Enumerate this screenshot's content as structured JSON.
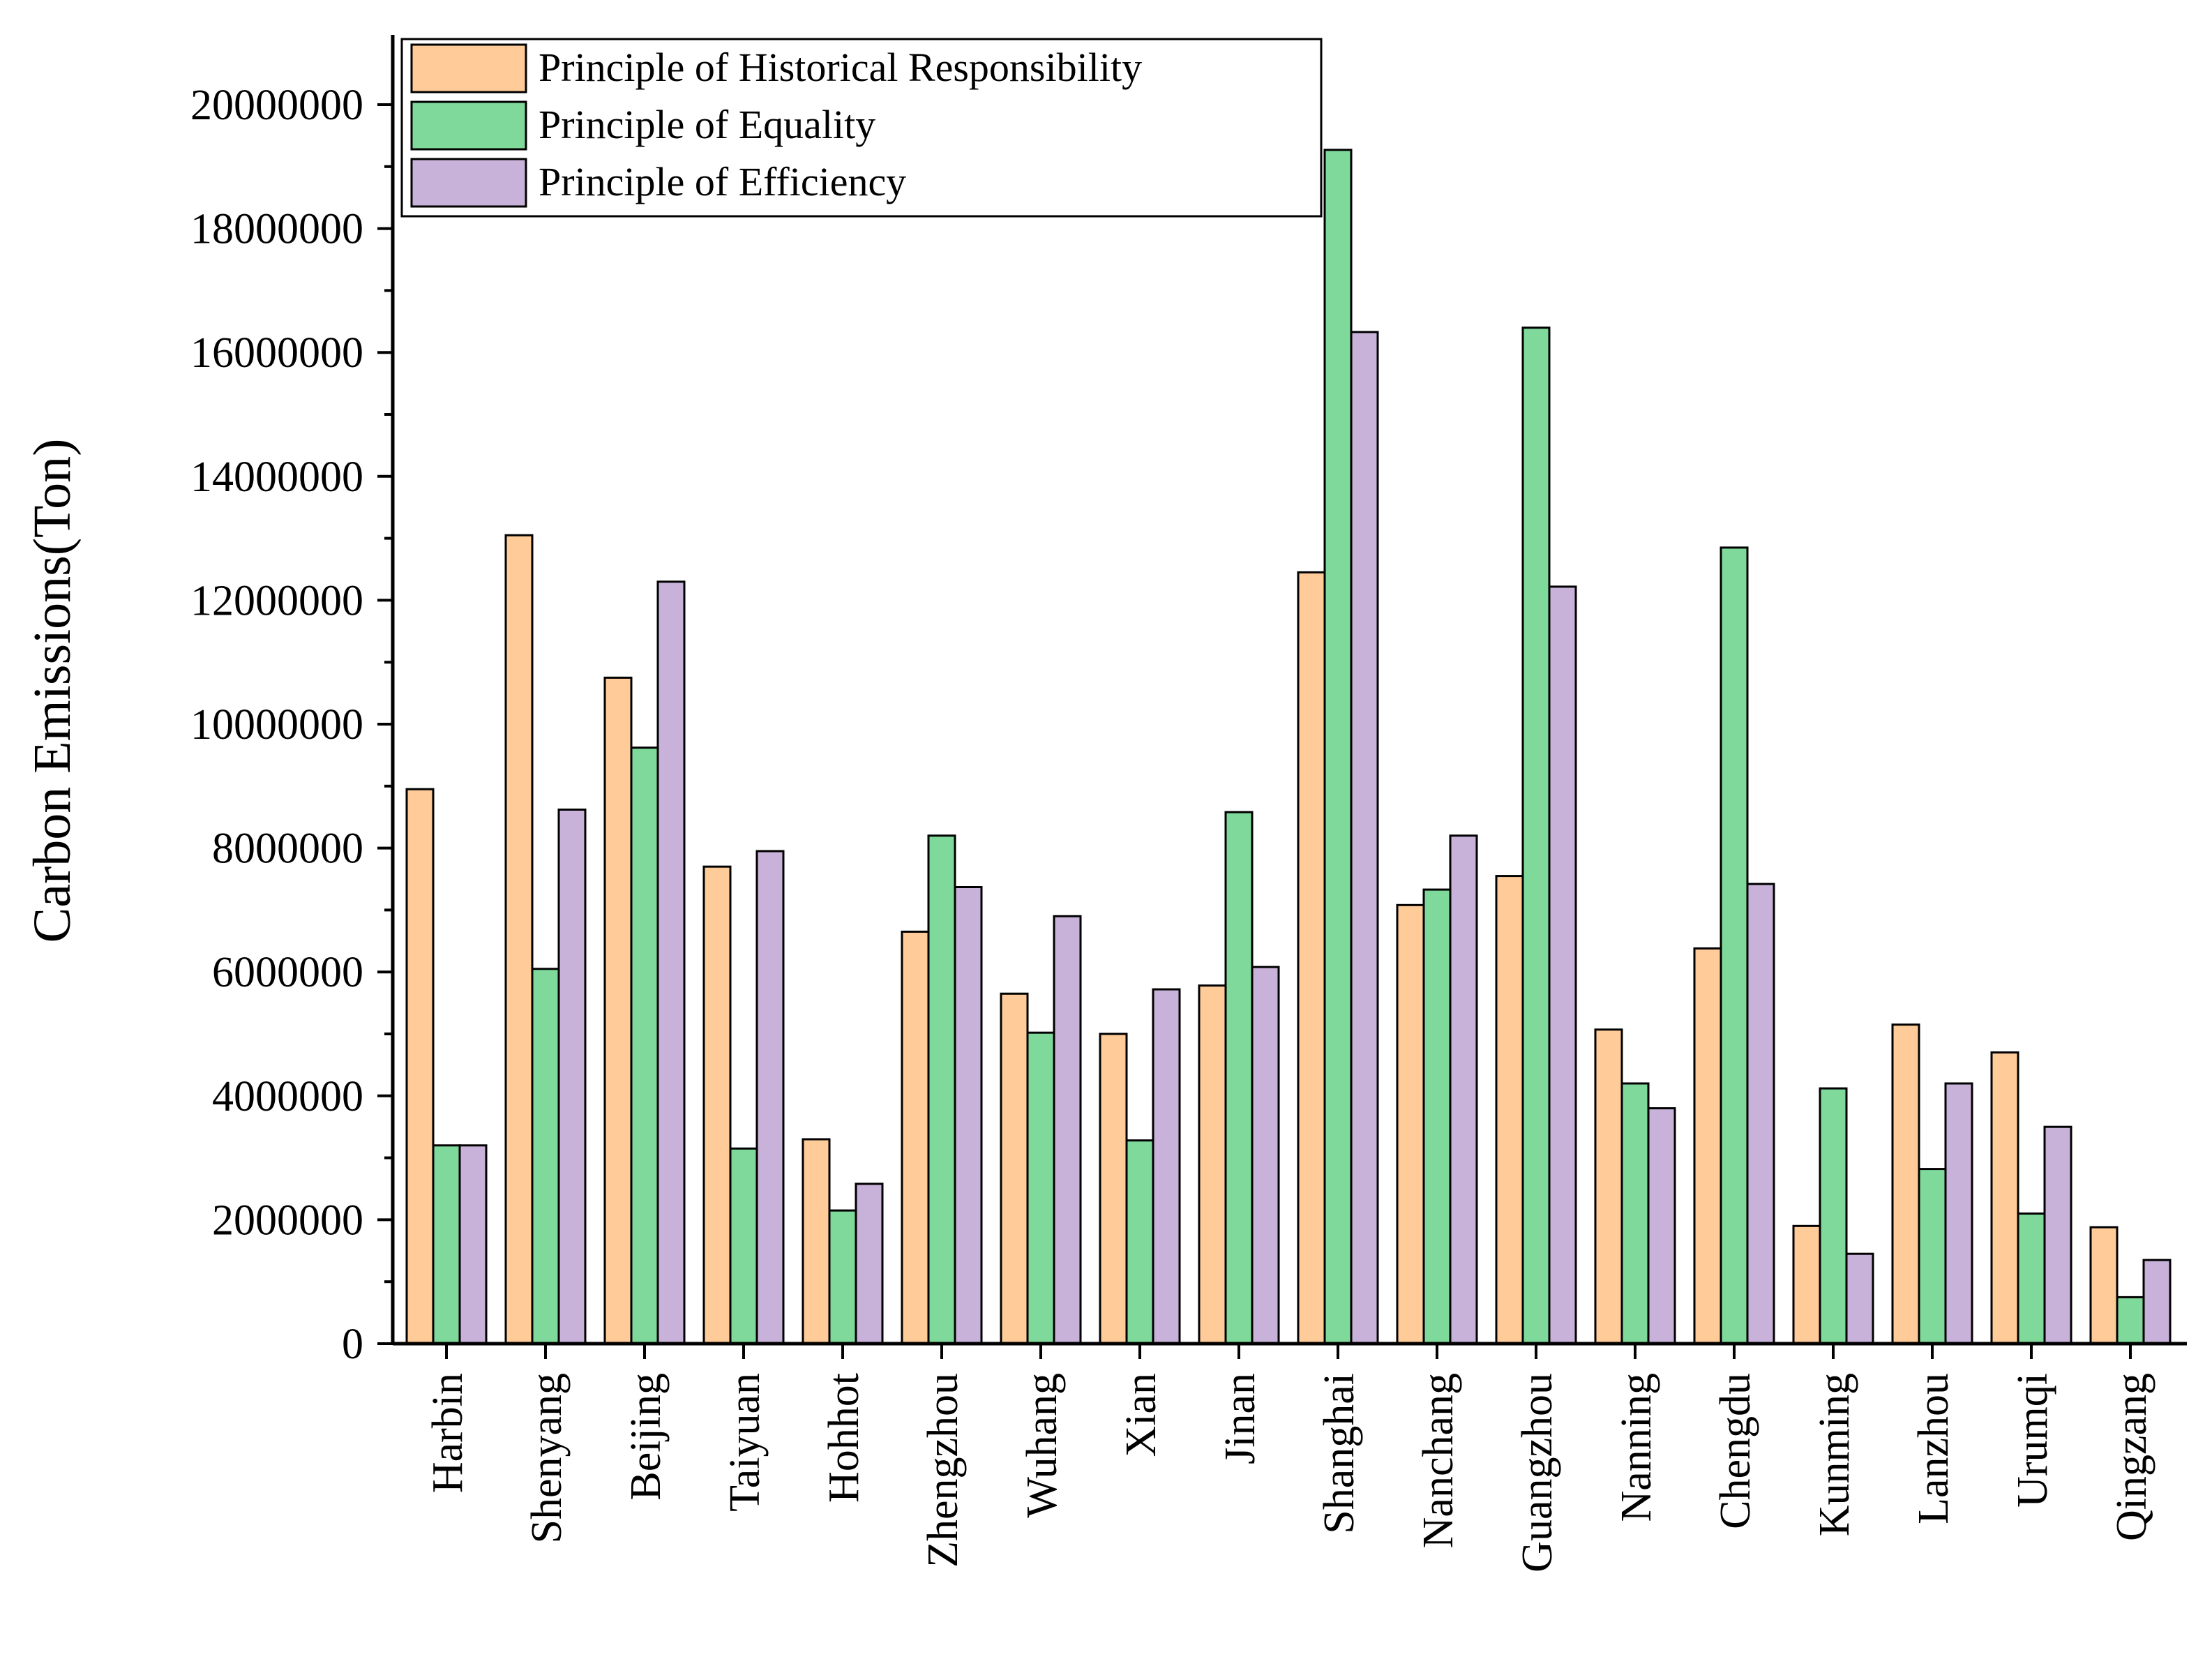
{
  "chart_data": {
    "type": "bar",
    "title": "",
    "xlabel": "",
    "ylabel": "Carbon Emissions(Ton)",
    "ylim": [
      0,
      21000000
    ],
    "yticks": [
      0,
      2000000,
      4000000,
      6000000,
      8000000,
      10000000,
      12000000,
      14000000,
      16000000,
      18000000,
      20000000
    ],
    "ytick_labels": [
      "0",
      "2000000",
      "4000000",
      "6000000",
      "8000000",
      "10000000",
      "12000000",
      "14000000",
      "16000000",
      "18000000",
      "20000000"
    ],
    "grid": false,
    "legend_position": "top-left",
    "categories": [
      "Harbin",
      "Shenyang",
      "Beijing",
      "Taiyuan",
      "Hohhot",
      "Zhengzhou",
      "Wuhang",
      "Xian",
      "Jinan",
      "Shanghai",
      "Nanchang",
      "Guangzhou",
      "Nanning",
      "Chengdu",
      "Kunming",
      "Lanzhou",
      "Urumqi",
      "Qingzang"
    ],
    "series": [
      {
        "name": "Principle of Historical Responsibility",
        "color": "#FFCC99",
        "values": [
          8950000,
          13050000,
          10750000,
          7700000,
          3300000,
          6650000,
          5650000,
          5000000,
          5780000,
          12450000,
          7080000,
          7550000,
          5070000,
          6380000,
          1900000,
          5150000,
          4700000,
          1880000
        ]
      },
      {
        "name": "Principle of Equality",
        "color": "#7FD99B",
        "values": [
          3200000,
          6050000,
          9620000,
          3150000,
          2150000,
          8200000,
          5020000,
          3280000,
          8580000,
          19270000,
          7330000,
          16400000,
          4200000,
          12850000,
          4120000,
          2820000,
          2100000,
          750000
        ]
      },
      {
        "name": "Principle of Efficiency",
        "color": "#C9B2D9",
        "values": [
          3200000,
          8620000,
          12300000,
          7950000,
          2580000,
          7370000,
          6900000,
          5720000,
          6080000,
          16330000,
          8200000,
          12220000,
          3800000,
          7420000,
          1450000,
          4200000,
          3500000,
          1350000
        ]
      }
    ]
  }
}
